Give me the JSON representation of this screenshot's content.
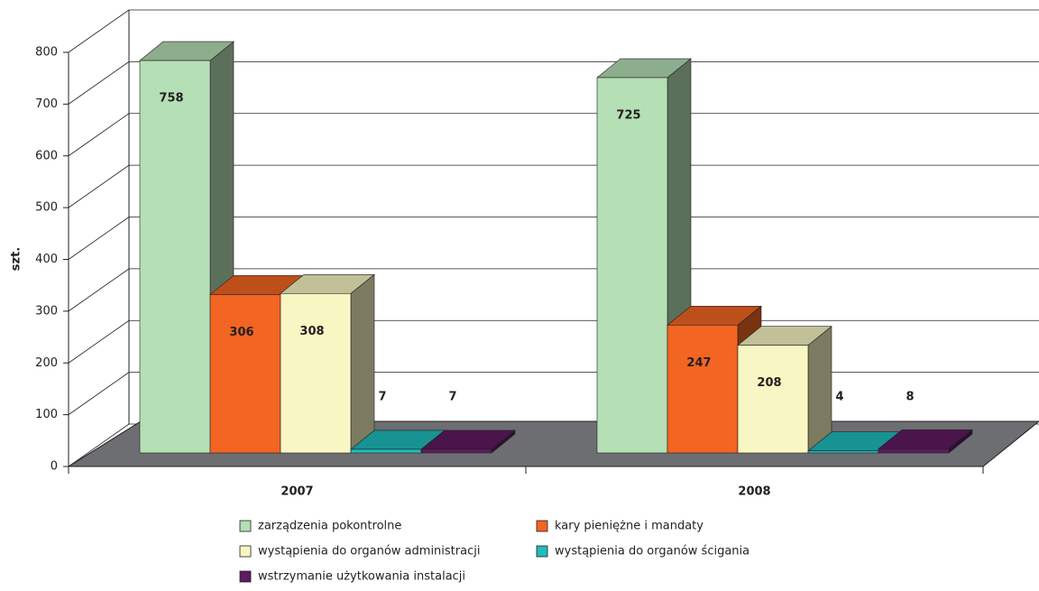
{
  "chart_data": {
    "type": "bar",
    "y_label": "szt.",
    "categories": [
      "2007",
      "2008"
    ],
    "series": [
      {
        "name": "zarządzenia pokontrolne",
        "color": "#b5dfb5",
        "values": [
          758,
          725
        ]
      },
      {
        "name": "kary pieniężne i mandaty",
        "color": "#f26522",
        "values": [
          306,
          247
        ]
      },
      {
        "name": "wystąpienia do organów administracji",
        "color": "#f8f6c2",
        "values": [
          308,
          208
        ]
      },
      {
        "name": "wystąpienia do organów ścigania",
        "color": "#1fbcbc",
        "values": [
          7,
          4
        ]
      },
      {
        "name": "wstrzymanie użytkowania instalacji",
        "color": "#5e1b60",
        "values": [
          7,
          8
        ]
      }
    ],
    "ylim": [
      0,
      800
    ],
    "yticks": [
      0,
      100,
      200,
      300,
      400,
      500,
      600,
      700,
      800
    ],
    "grid": true
  }
}
